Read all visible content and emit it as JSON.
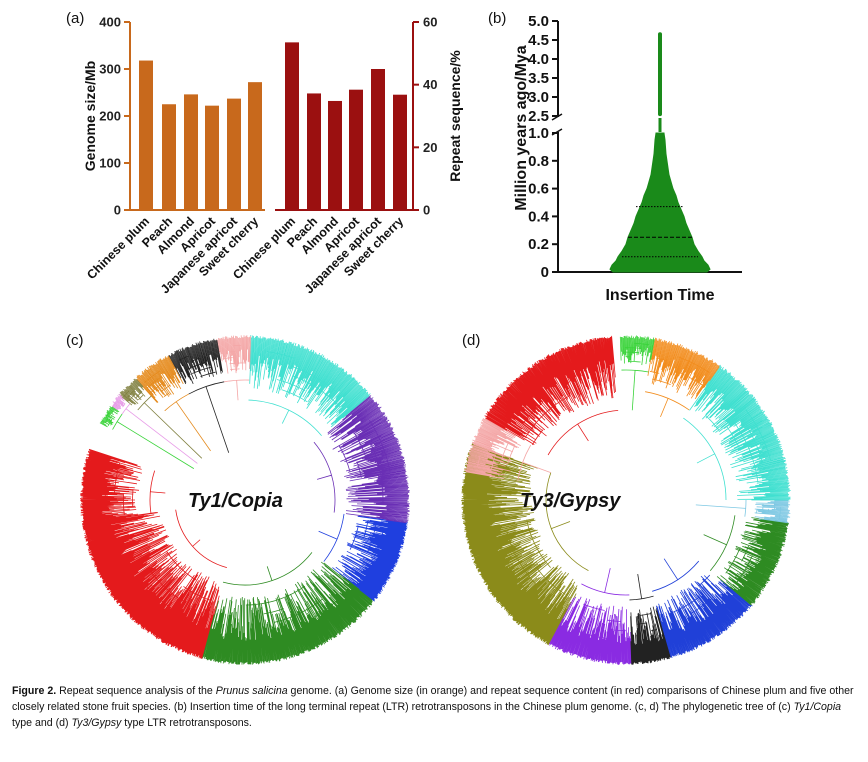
{
  "panels": {
    "a": "(a)",
    "b": "(b)",
    "c": "(c)",
    "d": "(d)"
  },
  "chart_data": [
    {
      "type": "bar",
      "panel": "a",
      "categories": [
        "Chinese plum",
        "Peach",
        "Almond",
        "Apricot",
        "Japanese apricot",
        "Sweet cherry"
      ],
      "series": [
        {
          "name": "Genome size",
          "axis": "left",
          "color": "#c8691c",
          "values": [
            318,
            225,
            246,
            222,
            237,
            272
          ]
        },
        {
          "name": "Repeat sequence",
          "axis": "right",
          "color": "#9b1010",
          "values": [
            53.5,
            37.2,
            34.8,
            38.4,
            45.0,
            36.8
          ]
        }
      ],
      "ylabel_left": "Genome size/Mb",
      "ylabel_right": "Repeat sequence/%",
      "ylim_left": [
        0,
        400
      ],
      "ylim_right": [
        0,
        60
      ],
      "yticks_left": [
        "0",
        "100",
        "200",
        "300",
        "400"
      ],
      "yticks_right": [
        "0",
        "20",
        "40",
        "60"
      ]
    },
    {
      "type": "violin",
      "panel": "b",
      "color": "#1a8a1a",
      "xlabel": "Insertion Time",
      "ylabel": "Million years ago/Mya",
      "yticks_lower": [
        "0",
        "0.2",
        "0.4",
        "0.6",
        "0.8",
        "1.0"
      ],
      "yticks_upper": [
        "2.5",
        "3.0",
        "3.5",
        "4.0",
        "4.5",
        "5.0"
      ],
      "quartiles": [
        0.11,
        0.25,
        0.47
      ],
      "max": 4.65
    }
  ],
  "trees": {
    "c": {
      "title": "Ty1/Copia"
    },
    "d": {
      "title": "Ty3/Gypsy"
    }
  },
  "caption": {
    "label": "Figure 2.",
    "text1": " Repeat sequence analysis of the ",
    "species": "Prunus salicina",
    "text2": " genome. (a) Genome size (in orange) and repeat sequence content (in red) comparisons of Chinese plum and five other closely related stone fruit species. (b) Insertion time of the long terminal repeat (LTR) retrotransposons in the Chinese plum genome. (c, d) The phylogenetic tree of (c) ",
    "copia": "Ty1/Copia",
    "text3": " type and (d) ",
    "gypsy": "Ty3/Gypsy",
    "text4": " type LTR retrotransposons."
  }
}
